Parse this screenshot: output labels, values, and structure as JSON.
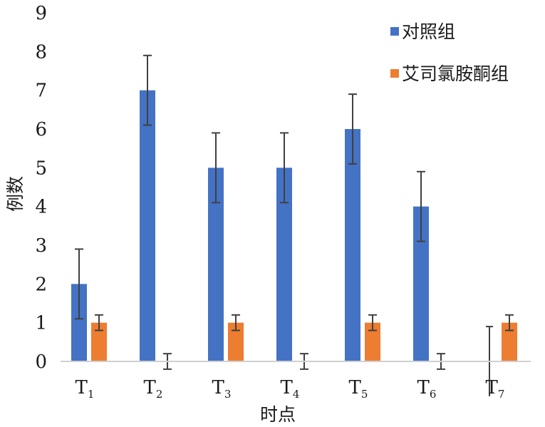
{
  "chart_data": {
    "type": "bar",
    "xlabel": "时点",
    "ylabel": "例数",
    "ylim": [
      0,
      9
    ],
    "yticks": [
      "0",
      "1",
      "2",
      "3",
      "4",
      "5",
      "6",
      "7",
      "8",
      "9"
    ],
    "grid": false,
    "legend_position": "top-right",
    "categories": [
      {
        "base": "T",
        "sub": "1"
      },
      {
        "base": "T",
        "sub": "2"
      },
      {
        "base": "T",
        "sub": "3"
      },
      {
        "base": "T",
        "sub": "4"
      },
      {
        "base": "T",
        "sub": "5"
      },
      {
        "base": "T",
        "sub": "6"
      },
      {
        "base": "T",
        "sub": "7"
      }
    ],
    "series": [
      {
        "name": "对照组",
        "color": "#4472c4",
        "values": [
          2,
          7,
          5,
          5,
          6,
          4,
          0
        ],
        "error": [
          0.9,
          0.9,
          0.9,
          0.9,
          0.9,
          0.9,
          0.9
        ]
      },
      {
        "name": "艾司氯胺酮组",
        "color": "#ed7d31",
        "values": [
          1,
          0,
          1,
          0,
          1,
          0,
          1
        ],
        "error": [
          0.2,
          0.2,
          0.2,
          0.2,
          0.2,
          0.2,
          0.2
        ]
      }
    ]
  }
}
